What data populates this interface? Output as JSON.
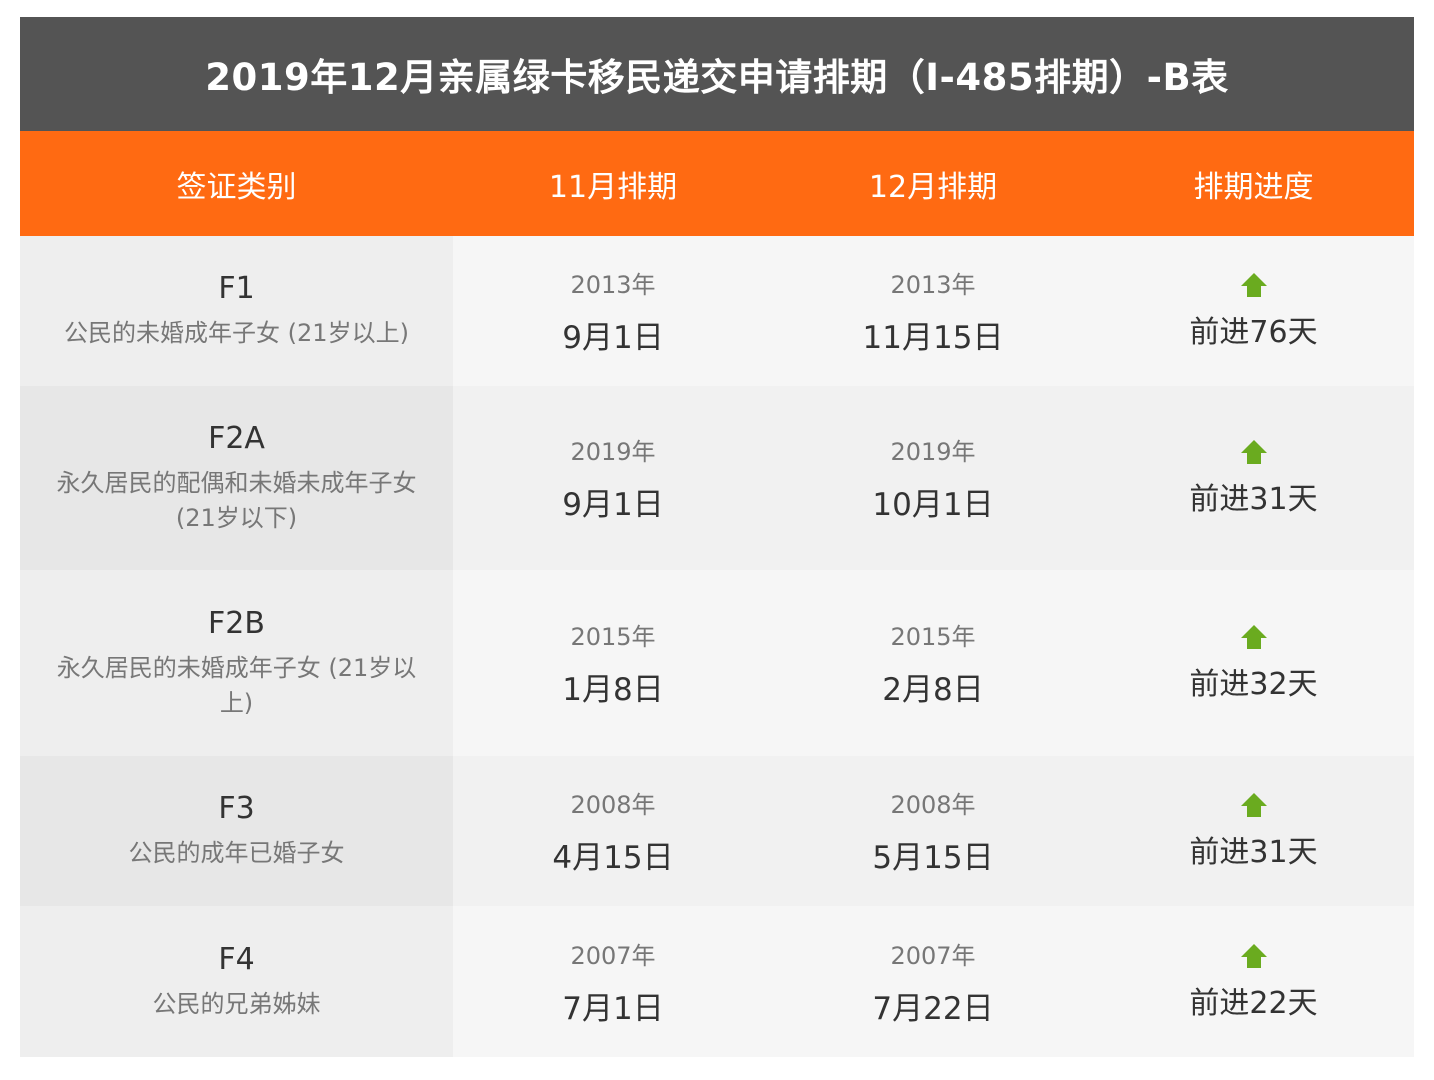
{
  "title": "2019年12月亲属绿卡移民递交申请排期（I-485排期）-B表",
  "headers": [
    "签证类别",
    "11月排期",
    "12月排期",
    "排期进度"
  ],
  "colors": {
    "title_bg": "#545454",
    "header_bg": "#ff6a12",
    "arrow": "#6aab1f"
  },
  "rows": [
    {
      "code": "F1",
      "desc": "公民的未婚成年子女 (21岁以上)",
      "nov_year": "2013年",
      "nov_date": "9月1日",
      "dec_year": "2013年",
      "dec_date": "11月15日",
      "arrow_icon": "up-arrow-icon",
      "progress": "前进76天"
    },
    {
      "code": "F2A",
      "desc": "永久居民的配偶和未婚未成年子女 (21岁以下)",
      "nov_year": "2019年",
      "nov_date": "9月1日",
      "dec_year": "2019年",
      "dec_date": "10月1日",
      "arrow_icon": "up-arrow-icon",
      "progress": "前进31天"
    },
    {
      "code": "F2B",
      "desc": "永久居民的未婚成年子女 (21岁以上)",
      "nov_year": "2015年",
      "nov_date": "1月8日",
      "dec_year": "2015年",
      "dec_date": "2月8日",
      "arrow_icon": "up-arrow-icon",
      "progress": "前进32天"
    },
    {
      "code": "F3",
      "desc": "公民的成年已婚子女",
      "nov_year": "2008年",
      "nov_date": "4月15日",
      "dec_year": "2008年",
      "dec_date": "5月15日",
      "arrow_icon": "up-arrow-icon",
      "progress": "前进31天"
    },
    {
      "code": "F4",
      "desc": "公民的兄弟姊妹",
      "nov_year": "2007年",
      "nov_date": "7月1日",
      "dec_year": "2007年",
      "dec_date": "7月22日",
      "arrow_icon": "up-arrow-icon",
      "progress": "前进22天"
    }
  ]
}
